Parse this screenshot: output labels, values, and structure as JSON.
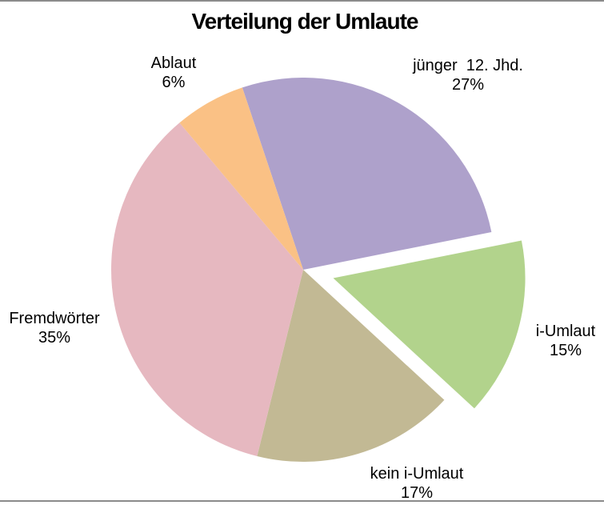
{
  "title": "Verteilung der Umlaute",
  "chart_data": {
    "type": "pie",
    "title": "Verteilung der Umlaute",
    "direction": "clockwise",
    "start_angle_deg": -18.5,
    "legend": "none",
    "labels_show_percent": true,
    "slices": [
      {
        "name": "juenger-12-jhd",
        "label": "jünger  12. Jhd.",
        "value": 27,
        "percent_label": "27%",
        "color": "#AEA1CB",
        "exploded": false
      },
      {
        "name": "i-umlaut",
        "label": "i-Umlaut",
        "value": 15,
        "percent_label": "15%",
        "color": "#B2D38C",
        "exploded": true
      },
      {
        "name": "kein-i-umlaut",
        "label": "kein i-Umlaut",
        "value": 17,
        "percent_label": "17%",
        "color": "#C2B994",
        "exploded": false
      },
      {
        "name": "fremdwoerter",
        "label": "Fremdwörter",
        "value": 35,
        "percent_label": "35%",
        "color": "#E6B8C0",
        "exploded": false
      },
      {
        "name": "ablaut",
        "label": "Ablaut",
        "value": 6,
        "percent_label": "6%",
        "color": "#FAC185",
        "exploded": false
      }
    ]
  }
}
